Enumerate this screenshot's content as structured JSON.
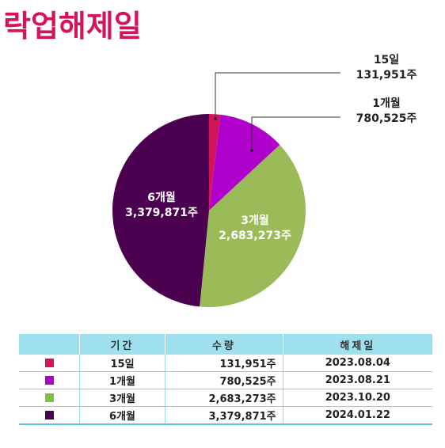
{
  "title": "락업해제일",
  "chart_data": {
    "type": "pie",
    "slices": [
      {
        "label": "15일",
        "value": 131951,
        "value_text": "131,951주",
        "color": "#d4145a"
      },
      {
        "label": "1개월",
        "value": 780525,
        "value_text": "780,525주",
        "color": "#b000cc"
      },
      {
        "label": "3개월",
        "value": 2683273,
        "value_text": "2,683,273주",
        "color": "#9bbb59"
      },
      {
        "label": "6개월",
        "value": 3379871,
        "value_text": "3,379,871주",
        "color": "#4b0050"
      }
    ]
  },
  "table": {
    "headers": [
      "",
      "기간",
      "수량",
      "해제일"
    ],
    "rows": [
      {
        "period": "15일",
        "qty": "131,951주",
        "date": "2023.08.04",
        "color": "#d4145a"
      },
      {
        "period": "1개월",
        "qty": "780,525주",
        "date": "2023.08.21",
        "color": "#b000cc"
      },
      {
        "period": "3개월",
        "qty": "2,683,273주",
        "date": "2023.10.20",
        "color": "#7fc13f"
      },
      {
        "period": "6개월",
        "qty": "3,379,871주",
        "date": "2024.01.22",
        "color": "#4b0050"
      }
    ]
  }
}
